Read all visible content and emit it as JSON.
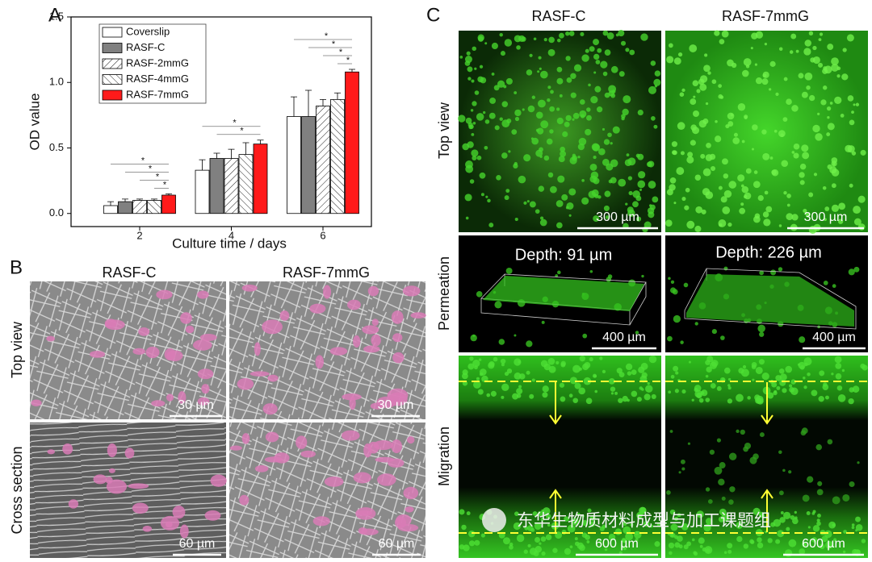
{
  "chart_data": {
    "type": "bar",
    "panel_label": "A",
    "x_label": "Culture time / days",
    "y_label": "OD value",
    "categories": [
      "2",
      "4",
      "6"
    ],
    "series": [
      {
        "name": "Coverslip",
        "color": "#ffffff",
        "pattern": "solid",
        "values": [
          0.06,
          0.33,
          0.74
        ],
        "errors": [
          0.03,
          0.08,
          0.15
        ]
      },
      {
        "name": "RASF-C",
        "color": "#808080",
        "pattern": "solid",
        "values": [
          0.09,
          0.42,
          0.74
        ],
        "errors": [
          0.02,
          0.04,
          0.2
        ]
      },
      {
        "name": "RASF-2mmG",
        "color": "#ffffff",
        "pattern": "hatch-right",
        "values": [
          0.1,
          0.42,
          0.82
        ],
        "errors": [
          0.01,
          0.07,
          0.05
        ]
      },
      {
        "name": "RASF-4mmG",
        "color": "#ffffff",
        "pattern": "hatch-left",
        "values": [
          0.1,
          0.45,
          0.87
        ],
        "errors": [
          0.01,
          0.09,
          0.05
        ]
      },
      {
        "name": "RASF-7mmG",
        "color": "#ff1a1a",
        "pattern": "solid",
        "values": [
          0.14,
          0.53,
          1.08
        ],
        "errors": [
          0.01,
          0.03,
          0.02
        ]
      }
    ],
    "significance": [
      [
        "*",
        "*",
        "*",
        "*"
      ],
      [
        "*",
        "*"
      ],
      [
        "*",
        "*",
        "*",
        "*"
      ]
    ],
    "ylim": [
      -0.1,
      1.5
    ],
    "yticks": [
      {
        "value": 0,
        "label": "0.0"
      },
      0.5,
      {
        "value": 1,
        "label": "1.0"
      },
      1.5
    ]
  },
  "panel_b": {
    "label": "B",
    "columns": [
      "RASF-C",
      "RASF-7mmG"
    ],
    "rows": [
      "Top view",
      "Cross section"
    ],
    "scale_bars": [
      [
        "30 µm",
        "30 µm"
      ],
      [
        "60 µm",
        "60 µm"
      ]
    ]
  },
  "panel_c": {
    "label": "C",
    "columns": [
      "RASF-C",
      "RASF-7mmG"
    ],
    "rows": [
      "Top view",
      "Permeation",
      "Migration"
    ],
    "depth_labels": [
      "Depth: 91 µm",
      "Depth: 226 µm"
    ],
    "scale_bars": [
      [
        "300 µm",
        "300 µm"
      ],
      [
        "400 µm",
        "400 µm"
      ],
      [
        "600 µm",
        "600 µm"
      ]
    ]
  },
  "watermark": "东华生物质材料成型与加工课题组"
}
